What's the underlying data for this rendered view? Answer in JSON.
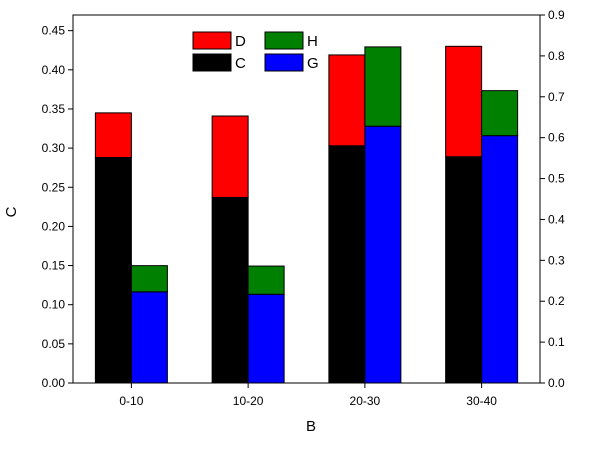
{
  "chart_data": {
    "type": "bar",
    "categories": [
      "0-10",
      "10-20",
      "20-30",
      "30-40"
    ],
    "xlabel": "B",
    "ylabel": "C",
    "ylim": [
      0,
      0.47
    ],
    "ylim_right": [
      0,
      0.9
    ],
    "yticks": [
      "0.00",
      "0.05",
      "0.10",
      "0.15",
      "0.20",
      "0.25",
      "0.30",
      "0.35",
      "0.40",
      "0.45"
    ],
    "yticks_right": [
      "0.0",
      "0.1",
      "0.2",
      "0.3",
      "0.4",
      "0.5",
      "0.6",
      "0.7",
      "0.8",
      "0.9"
    ],
    "grid": false,
    "legend_position": "top-left",
    "groups": [
      {
        "axis": "left",
        "position": "left-of-category",
        "series": [
          {
            "name": "C",
            "color": "#000000",
            "values": [
              0.288,
              0.237,
              0.303,
              0.289
            ]
          },
          {
            "name": "D",
            "color": "#ff0000",
            "values": [
              0.057,
              0.104,
              0.116,
              0.141
            ]
          }
        ]
      },
      {
        "axis": "right",
        "position": "right-of-category",
        "series": [
          {
            "name": "G",
            "color": "#0000ff",
            "values": [
              0.223,
              0.217,
              0.628,
              0.605
            ]
          },
          {
            "name": "H",
            "color": "#008000",
            "values": [
              0.064,
              0.069,
              0.194,
              0.11
            ]
          }
        ]
      }
    ],
    "legend": [
      {
        "name": "D",
        "color": "#ff0000"
      },
      {
        "name": "H",
        "color": "#008000"
      },
      {
        "name": "C",
        "color": "#000000"
      },
      {
        "name": "G",
        "color": "#0000ff"
      }
    ]
  }
}
